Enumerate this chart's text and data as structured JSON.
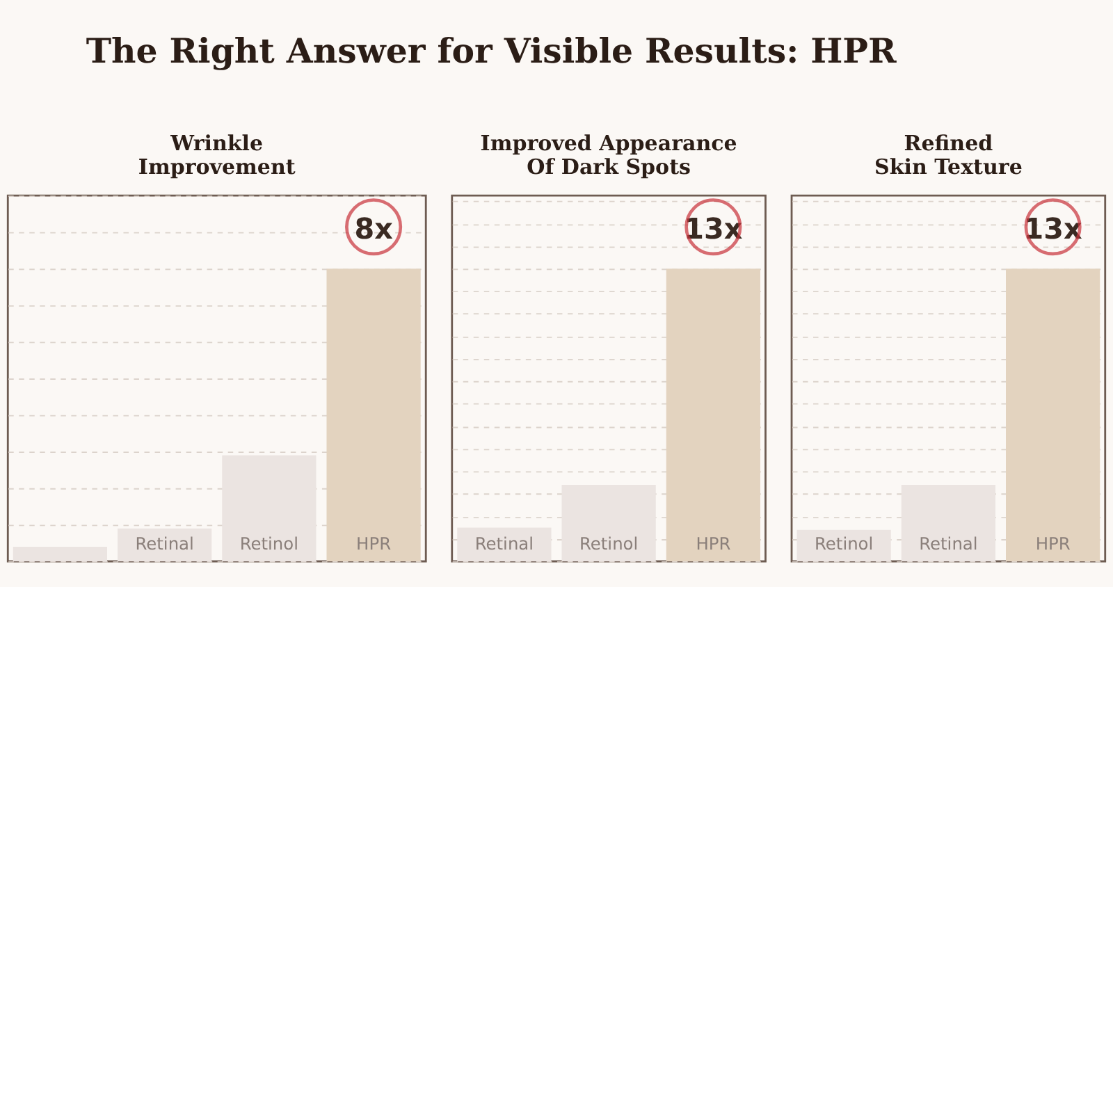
{
  "chart_data": [
    {
      "type": "other",
      "title": "The Right Answer for Visible Results: HPR"
    },
    {
      "type": "bar",
      "title": "Wrinkle\nImprovement",
      "ylim": [
        0,
        10
      ],
      "tick_labels": false,
      "grid": "y",
      "categories": [
        null,
        "Retinal",
        "Retinol",
        "HPR"
      ],
      "values": [
        0.4,
        0.9,
        2.9,
        8
      ],
      "colors": [
        "#ebe4e1",
        "#ebe4e1",
        "#ebe4e1",
        "#e3d3bf"
      ],
      "value_labels": [
        null,
        null,
        null,
        "8x"
      ]
    },
    {
      "type": "bar",
      "title": "Improved Appearance\nOf Dark Spots",
      "ylim": [
        0,
        16.25
      ],
      "tick_labels": false,
      "grid": "y",
      "categories": [
        "Retinal",
        "Retinol",
        "HPR"
      ],
      "values": [
        1.5,
        3.4,
        13
      ],
      "colors": [
        "#ebe4e1",
        "#ebe4e1",
        "#e3d3bf"
      ],
      "value_labels": [
        null,
        null,
        "13x"
      ]
    },
    {
      "type": "bar",
      "title": "Refined\nSkin Texture",
      "ylim": [
        0,
        16.25
      ],
      "tick_labels": false,
      "grid": "y",
      "categories": [
        "Retinol",
        "Retinal",
        "HPR"
      ],
      "values": [
        1.4,
        3.4,
        13
      ],
      "colors": [
        "#ebe4e1",
        "#ebe4e1",
        "#e3d3bf"
      ],
      "value_labels": [
        null,
        null,
        "13x"
      ]
    }
  ]
}
